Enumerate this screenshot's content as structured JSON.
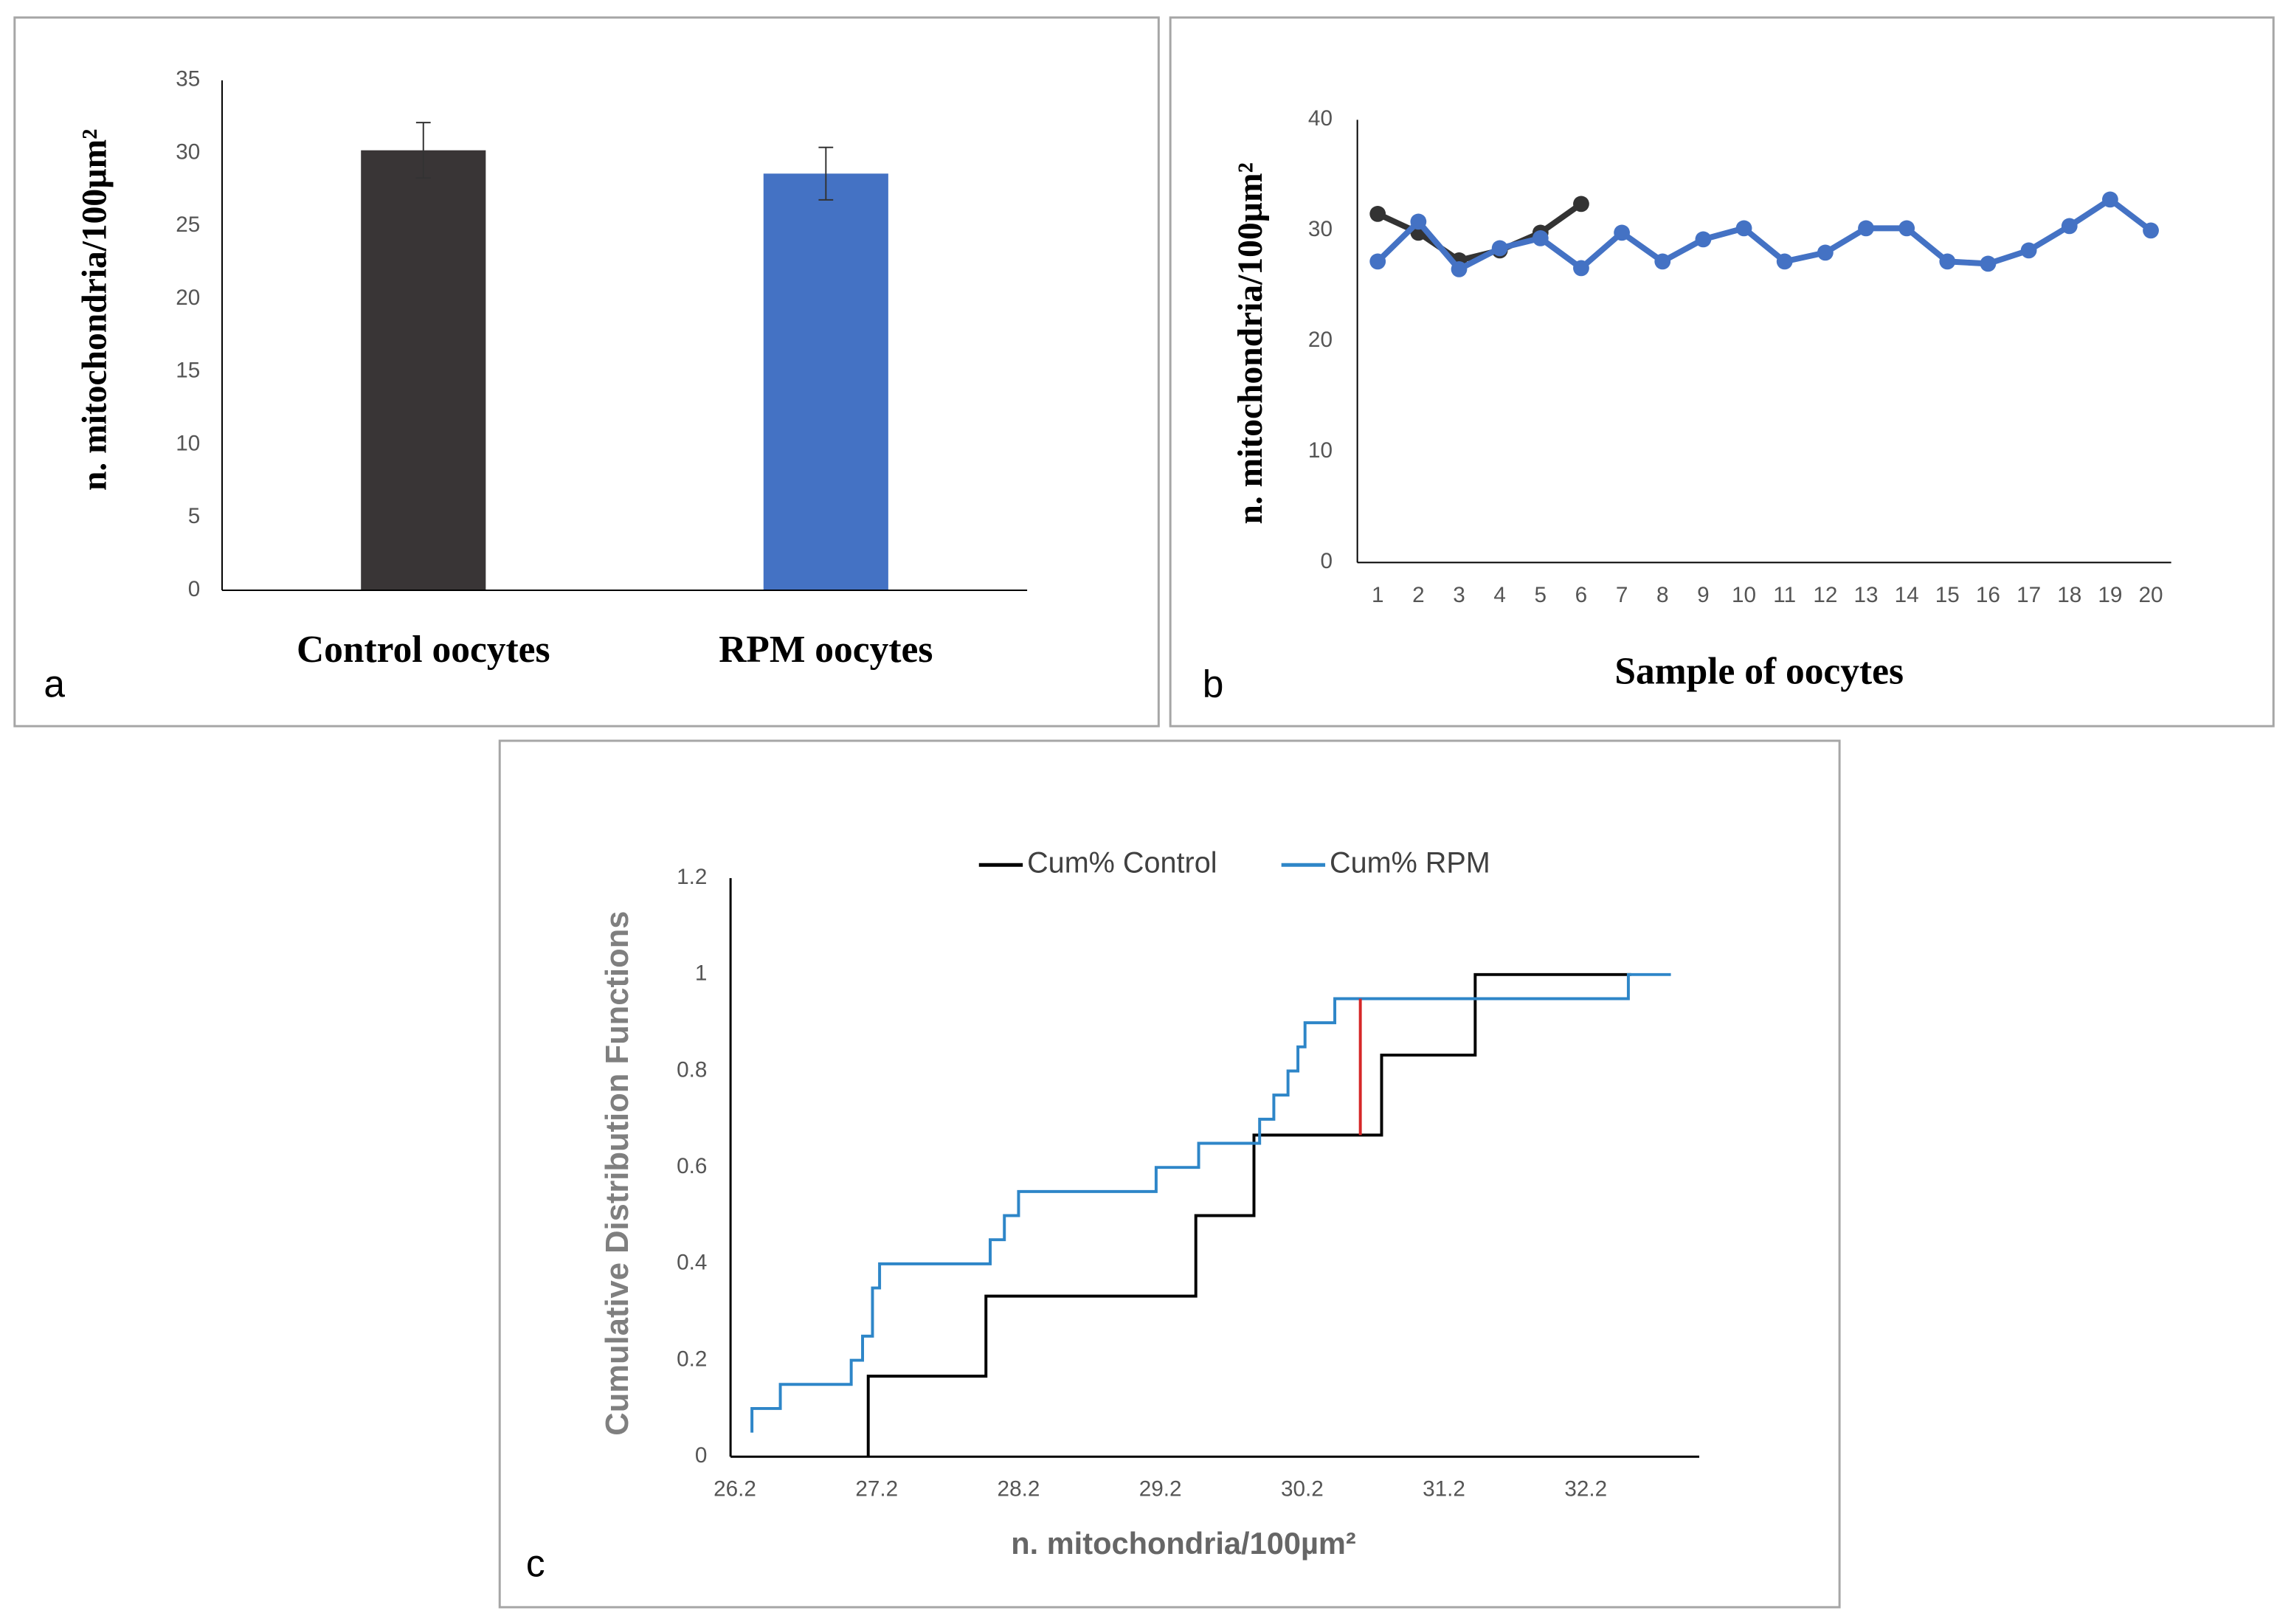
{
  "chart_data": [
    {
      "type": "bar",
      "panel": "a",
      "ylabel": "n. mitochondria/100µm²",
      "categories": [
        "Control oocytes",
        "RPM oocytes"
      ],
      "values": [
        30.2,
        28.6
      ],
      "errors": [
        1.9,
        1.8
      ],
      "colors": [
        "#393536",
        "#4472c4"
      ],
      "ylim": [
        0,
        35
      ],
      "yticks": [
        0,
        5,
        10,
        15,
        20,
        25,
        30,
        35
      ],
      "grid": false
    },
    {
      "type": "line",
      "panel": "b",
      "xlabel": "Sample of oocytes",
      "ylabel": "n. mitochondria/100µm²",
      "categories": [
        1,
        2,
        3,
        4,
        5,
        6,
        7,
        8,
        9,
        10,
        11,
        12,
        13,
        14,
        15,
        16,
        17,
        18,
        19,
        20
      ],
      "series": [
        {
          "color": "#333333",
          "values": [
            31.5,
            29.8,
            27.3,
            28.2,
            29.8,
            32.4,
            null,
            null,
            null,
            null,
            null,
            null,
            null,
            null,
            null,
            null,
            null,
            null,
            null,
            null
          ]
        },
        {
          "color": "#4472c4",
          "values": [
            27.2,
            30.8,
            26.5,
            28.4,
            29.3,
            26.6,
            29.8,
            27.2,
            29.2,
            30.2,
            27.2,
            28.0,
            30.2,
            30.2,
            27.2,
            27.0,
            28.2,
            30.4,
            32.8,
            30.0
          ]
        }
      ],
      "ylim": [
        0,
        40
      ],
      "yticks": [
        0,
        10,
        20,
        30,
        40
      ],
      "grid": false
    },
    {
      "type": "step",
      "panel": "c",
      "xlabel": "n. mitochondria/100µm²",
      "ylabel": "Cumulative Distribution Functions",
      "legend": "top",
      "series": [
        {
          "name": "Cum% Control",
          "color": "#000000",
          "x": [
            27.14,
            27.14,
            27.97,
            27.97,
            29.45,
            29.45,
            29.86,
            29.86,
            30.76,
            30.76,
            31.42,
            31.42,
            32.52
          ],
          "values": [
            0,
            0.167,
            0.167,
            0.333,
            0.333,
            0.5,
            0.5,
            0.667,
            0.667,
            0.833,
            0.833,
            1.0,
            1.0
          ]
        },
        {
          "name": "Cum% RPM",
          "color": "#2e86c8",
          "x": [
            26.32,
            26.32,
            26.52,
            26.52,
            27.02,
            27.02,
            27.1,
            27.1,
            27.17,
            27.17,
            27.22,
            27.22,
            28.0,
            28.0,
            28.1,
            28.1,
            28.2,
            28.2,
            29.17,
            29.17,
            29.47,
            29.47,
            29.9,
            29.9,
            30.0,
            30.0,
            30.1,
            30.1,
            30.17,
            30.17,
            30.22,
            30.22,
            30.43,
            30.43,
            32.5,
            32.5,
            32.8
          ],
          "values": [
            0.05,
            0.1,
            0.1,
            0.15,
            0.15,
            0.2,
            0.2,
            0.25,
            0.25,
            0.35,
            0.35,
            0.4,
            0.4,
            0.45,
            0.45,
            0.5,
            0.5,
            0.55,
            0.55,
            0.6,
            0.6,
            0.65,
            0.65,
            0.7,
            0.7,
            0.75,
            0.75,
            0.8,
            0.8,
            0.85,
            0.85,
            0.9,
            0.9,
            0.95,
            0.95,
            1.0,
            1.0
          ]
        }
      ],
      "ks_line": {
        "x": 30.61,
        "y": [
          0.667,
          0.95
        ],
        "color": "#d62728"
      },
      "xlim": [
        26.2,
        33.0
      ],
      "xticks": [
        26.2,
        27.2,
        28.2,
        29.2,
        30.2,
        31.2,
        32.2
      ],
      "ylim": [
        0,
        1.2
      ],
      "yticks": [
        0,
        0.2,
        0.4,
        0.6,
        0.8,
        1,
        1.2
      ],
      "grid": false
    }
  ]
}
